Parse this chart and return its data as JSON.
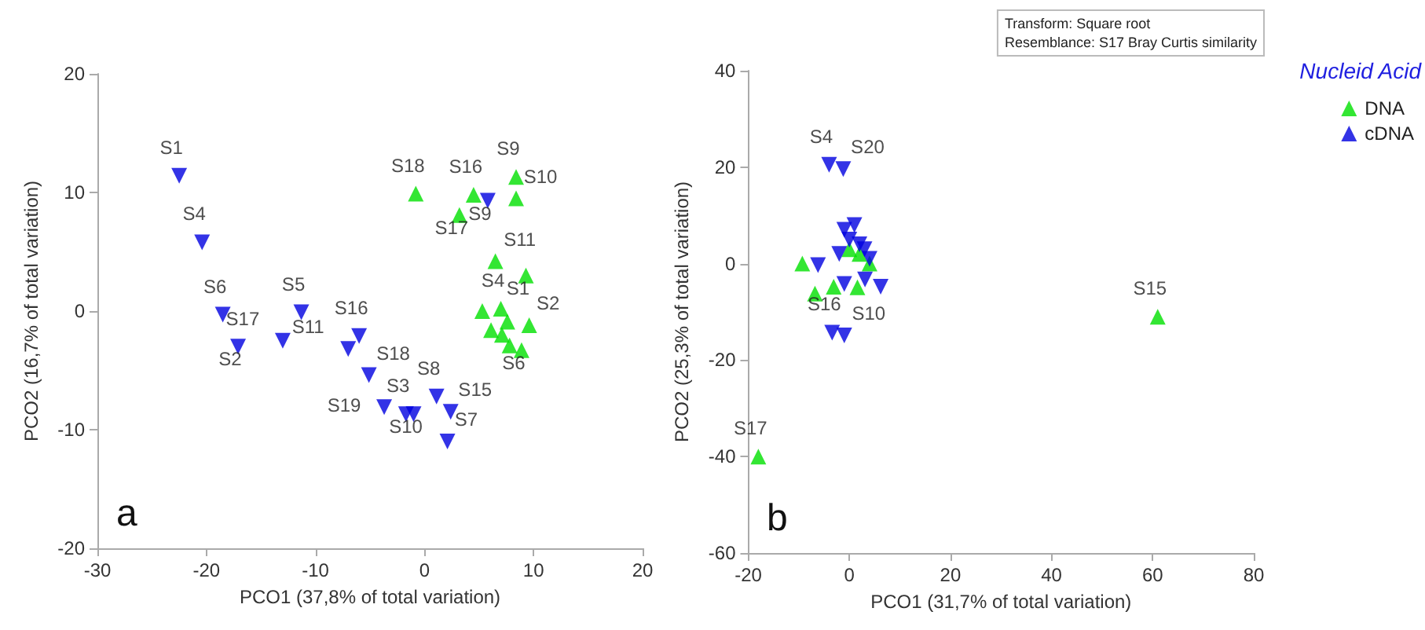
{
  "chart_data": [
    {
      "type": "scatter",
      "xlabel": "PCO1 (37,8% of total variation)",
      "ylabel": "PCO2 (16,7% of total variation)",
      "xlim": [
        -30,
        20
      ],
      "xticks": [
        -30,
        -20,
        -10,
        0,
        10,
        20
      ],
      "ylim": [
        -20,
        20
      ],
      "yticks": [
        -20,
        -10,
        0,
        10,
        20
      ],
      "grid": false,
      "legend": false,
      "annotations": [
        "a"
      ],
      "series": [
        {
          "color": "#00e000",
          "marker": "triangle",
          "x": [
            -0.8,
            3.2,
            4.5,
            8.4,
            8.4,
            6.5,
            9.3,
            5.3,
            7.0,
            9.6,
            7.8,
            8.9,
            6.1,
            7.1,
            7.6
          ],
          "values": [
            9.9,
            8.1,
            9.8,
            11.3,
            9.5,
            4.2,
            3.0,
            0.0,
            0.2,
            -1.2,
            -2.9,
            -3.3,
            -1.6,
            -2.0,
            -0.9
          ],
          "value_labels": [
            "S18",
            "S17",
            "S16",
            "S9",
            "S10",
            "S11",
            "S1",
            null,
            "S4",
            "S2",
            null,
            "S6",
            null,
            null,
            null
          ]
        },
        {
          "color": "#0000e0",
          "marker": "triangle-down",
          "x": [
            -22.5,
            -20.4,
            -18.5,
            -17.1,
            -13.0,
            -11.3,
            -6.0,
            -7.0,
            -5.1,
            -3.7,
            -1.7,
            -1.0,
            1.1,
            2.4,
            2.1,
            5.8
          ],
          "values": [
            11.4,
            5.8,
            -0.3,
            -3.0,
            -2.5,
            -0.1,
            -2.1,
            -3.2,
            -5.4,
            -8.1,
            -8.7,
            -8.7,
            -7.2,
            -8.5,
            -11.0,
            9.3
          ],
          "value_labels": [
            "S1",
            "S4",
            "S6",
            "S2",
            "S17",
            "S5",
            "S16",
            "S11",
            "S18",
            "S19",
            "S3",
            "S10",
            "S8",
            "S15",
            "S7",
            "S9"
          ]
        }
      ]
    },
    {
      "type": "scatter",
      "xlabel": "PCO1 (31,7% of total variation)",
      "ylabel": "PCO2 (25,3% of total variation)",
      "xlim": [
        -20,
        80
      ],
      "xticks": [
        -20,
        0,
        20,
        40,
        60,
        80
      ],
      "ylim": [
        -60,
        40
      ],
      "yticks": [
        -60,
        -40,
        -20,
        0,
        20,
        40
      ],
      "grid": false,
      "legend": "top right",
      "legend_title": "Nucleid Acid",
      "annotations": [
        "b",
        "Transform: Square root",
        "Resemblance: S17 Bray Curtis similarity"
      ],
      "series": [
        {
          "name": "DNA",
          "color": "#00e000",
          "marker": "triangle",
          "x": [
            -18,
            61,
            -9.3,
            -6.8,
            -3.1,
            1.6,
            2,
            4,
            0
          ],
          "values": [
            -40,
            -11,
            0,
            -6.2,
            -4.8,
            -4.9,
            2,
            0,
            3
          ],
          "value_labels": [
            "S17",
            "S15",
            null,
            null,
            null,
            null,
            null,
            null,
            null
          ]
        },
        {
          "name": "cDNA",
          "color": "#0000e0",
          "marker": "triangle-down",
          "x": [
            -4.0,
            -1.2,
            -3.4,
            -1.0,
            -6.2,
            -1.0,
            3.1,
            6.2,
            -1,
            0,
            2,
            3,
            -2,
            1,
            4
          ],
          "values": [
            20.5,
            19.6,
            -14.3,
            -14.9,
            -0.3,
            -4.2,
            -3.3,
            -4.8,
            7,
            5,
            4,
            3,
            2,
            8,
            1
          ],
          "value_labels": [
            "S4",
            "S20",
            "S16",
            "S10",
            null,
            null,
            null,
            null,
            null,
            null,
            null,
            null,
            null,
            null,
            null
          ]
        }
      ]
    }
  ]
}
